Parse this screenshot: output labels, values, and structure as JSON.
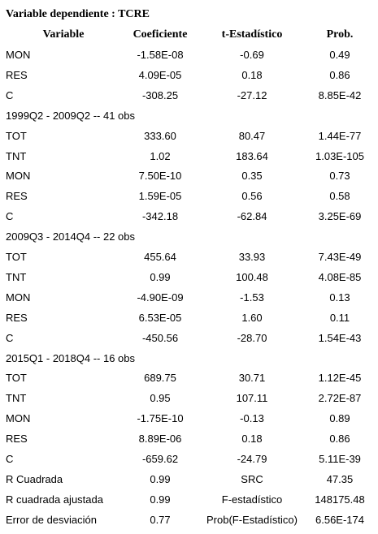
{
  "title": "Variable dependiente : TCRE",
  "header": [
    "Variable",
    "Coeficiente",
    "t-Estadístico",
    "Prob."
  ],
  "rows": [
    [
      "MON",
      "-1.58E-08",
      "-0.69",
      "0.49"
    ],
    [
      "RES",
      "4.09E-05",
      "0.18",
      "0.86"
    ],
    [
      "C",
      "-308.25",
      "-27.12",
      "8.85E-42"
    ],
    [
      "1999Q2 - 2009Q2 -- 41 obs"
    ],
    [
      "TOT",
      "333.60",
      "80.47",
      "1.44E-77"
    ],
    [
      "TNT",
      "1.02",
      "183.64",
      "1.03E-105"
    ],
    [
      "MON",
      "7.50E-10",
      "0.35",
      "0.73"
    ],
    [
      "RES",
      "1.59E-05",
      "0.56",
      "0.58"
    ],
    [
      "C",
      "-342.18",
      "-62.84",
      "3.25E-69"
    ],
    [
      "2009Q3 - 2014Q4 -- 22 obs"
    ],
    [
      "TOT",
      "455.64",
      "33.93",
      "7.43E-49"
    ],
    [
      "TNT",
      "0.99",
      "100.48",
      "4.08E-85"
    ],
    [
      "MON",
      "-4.90E-09",
      "-1.53",
      "0.13"
    ],
    [
      "RES",
      "6.53E-05",
      "1.60",
      "0.11"
    ],
    [
      "C",
      "-450.56",
      "-28.70",
      "1.54E-43"
    ],
    [
      "2015Q1 - 2018Q4 -- 16 obs"
    ],
    [
      "TOT",
      "689.75",
      "30.71",
      "1.12E-45"
    ],
    [
      "TNT",
      "0.95",
      "107.11",
      "2.72E-87"
    ],
    [
      "MON",
      "-1.75E-10",
      "-0.13",
      "0.89"
    ],
    [
      "RES",
      "8.89E-06",
      "0.18",
      "0.86"
    ],
    [
      "C",
      "-659.62",
      "-24.79",
      "5.11E-39"
    ],
    [
      "R Cuadrada",
      "0.99",
      "SRC",
      "47.35"
    ],
    [
      "R cuadrada ajustada",
      "0.99",
      "F-estadístico",
      "148175.48"
    ],
    [
      "Error de desviación",
      "0.77",
      "Prob(F-Estadístico)",
      "6.56E-174"
    ]
  ]
}
